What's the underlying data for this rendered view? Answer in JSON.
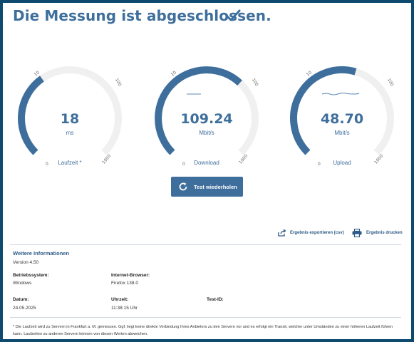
{
  "header": {
    "title": "Die Messung ist abgeschlossen."
  },
  "gauges": [
    {
      "value": "18",
      "unit": "ms",
      "label": "Laufzeit *",
      "ticks": [
        "10",
        "100",
        "1000",
        "0"
      ],
      "fill": 0.37
    },
    {
      "value": "109.24",
      "unit": "Mbit/s",
      "label": "Download",
      "ticks": [
        "10",
        "100",
        "1000",
        "0"
      ],
      "fill": 0.66
    },
    {
      "value": "48.70",
      "unit": "Mbit/s",
      "label": "Upload",
      "ticks": [
        "10",
        "100",
        "1000",
        "0"
      ],
      "fill": 0.56
    }
  ],
  "actions": {
    "repeat_label": "Test wiederholen",
    "export_label": "Ergebnis exportieren (csv)",
    "print_label": "Ergebnis drucken"
  },
  "info": {
    "title": "Weitere Informationen",
    "version": "Version 4.50",
    "os_label": "Betriebssystem:",
    "os_value": "Windows",
    "browser_label": "Internet-Browser:",
    "browser_value": "Firefox 138.0",
    "date_label": "Datum:",
    "date_value": "24.05.2025",
    "time_label": "Uhrzeit:",
    "time_value": "11:38:15 Uhr",
    "testid_label": "Test-ID:",
    "testid_value": ""
  },
  "footnote": "* Die Laufzeit wird zu Servern in Frankfurt a. M. gemessen. Ggf. liegt keine direkte Verbindung Ihres Anbieters zu den Servern vor und es erfolgt ein Transit, welcher unter Umständen zu einer höheren Laufzeit führen kann. Laufzeiten zu anderen Servern können von diesen Werten abweichen.",
  "colors": {
    "accent": "#3e6f9c",
    "track": "#f0f0f0",
    "frame": "#0e4a6e"
  }
}
